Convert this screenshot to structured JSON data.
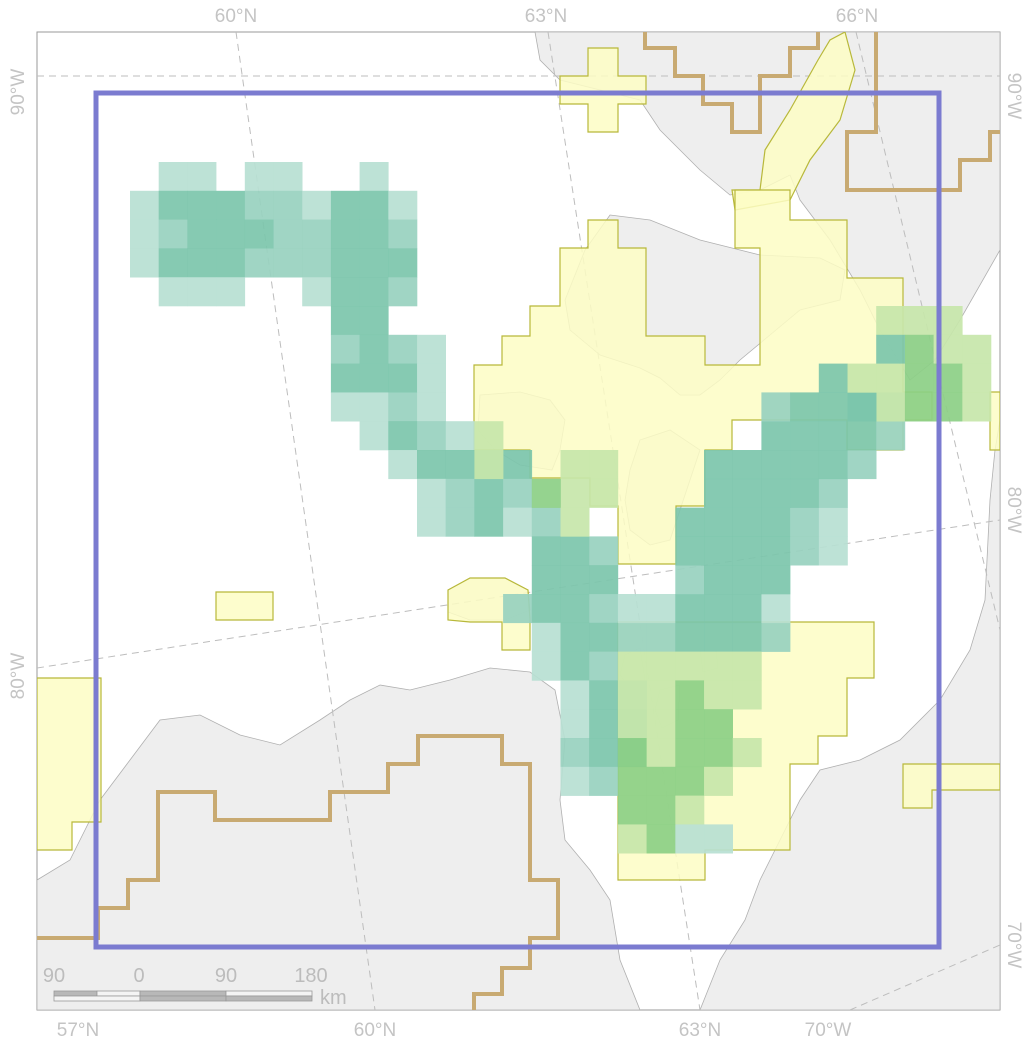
{
  "map": {
    "graticule_labels": {
      "top": [
        "60°N",
        "63°N",
        "66°N"
      ],
      "bottom": [
        "57°N",
        "60°N",
        "63°N",
        "70°W"
      ],
      "left": [
        "90°W",
        "80°W"
      ],
      "right": [
        "90°W",
        "80°W",
        "70°W"
      ]
    },
    "scale_bar": {
      "ticks": [
        "90",
        "0",
        "90",
        "180"
      ],
      "unit": "km"
    },
    "colors": {
      "land": "#eeeeee",
      "water": "#ffffff",
      "coastline": "#b0b0b0",
      "study_area_outline": "#7b7bd0",
      "boundary_line": "#c8aa72",
      "protected_area_fill": "#fdfdc4",
      "protected_area_outline": "#b8b83a",
      "grid_teal_light": "#b7e0d3",
      "grid_teal_mid": "#98d1bf",
      "grid_teal_dark": "#7cc5ab",
      "grid_green_light": "#c7e6aa",
      "grid_green_dark": "#8ccf86"
    }
  }
}
